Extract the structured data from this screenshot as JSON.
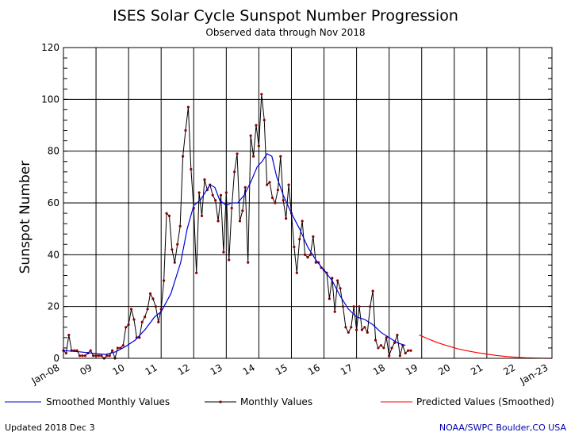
{
  "chart_data": {
    "type": "line",
    "title": "ISES Solar Cycle Sunspot Number Progression",
    "subtitle": "Observed data through Nov 2018",
    "ylabel": "Sunspot Number",
    "xlabel": "",
    "ylim": [
      0,
      120
    ],
    "yticks": [
      0,
      20,
      40,
      60,
      80,
      100,
      120
    ],
    "xlim": [
      2008.0,
      2023.0
    ],
    "xticks": [
      {
        "value": 2008,
        "label": "Jan-08"
      },
      {
        "value": 2009,
        "label": "09"
      },
      {
        "value": 2010,
        "label": "10"
      },
      {
        "value": 2011,
        "label": "11"
      },
      {
        "value": 2012,
        "label": "12"
      },
      {
        "value": 2013,
        "label": "13"
      },
      {
        "value": 2014,
        "label": "14"
      },
      {
        "value": 2015,
        "label": "15"
      },
      {
        "value": 2016,
        "label": "16"
      },
      {
        "value": 2017,
        "label": "17"
      },
      {
        "value": 2018,
        "label": "18"
      },
      {
        "value": 2019,
        "label": "19"
      },
      {
        "value": 2020,
        "label": "20"
      },
      {
        "value": 2021,
        "label": "21"
      },
      {
        "value": 2022,
        "label": "22"
      },
      {
        "value": 2023,
        "label": "Jan-23"
      }
    ],
    "grid": true,
    "legend_position": "bottom",
    "colors": {
      "smoothed": "#0000dd",
      "monthly": "#000000",
      "monthly_marker": "#8b0000",
      "predicted": "#ff0000"
    },
    "series": [
      {
        "name": "Monthly Values",
        "x_start": 2008.0,
        "x_step_months": 1,
        "values": [
          3,
          2,
          9,
          3,
          3,
          3,
          1,
          1,
          1,
          2,
          3,
          1,
          1,
          1,
          1,
          0,
          1,
          1,
          3,
          0,
          4,
          4,
          5,
          12,
          13,
          19,
          15,
          8,
          8,
          14,
          16,
          19,
          25,
          23,
          20,
          14,
          19,
          30,
          56,
          55,
          42,
          37,
          44,
          51,
          78,
          88,
          97,
          73,
          58,
          33,
          64,
          55,
          69,
          65,
          67,
          63,
          61,
          53,
          63,
          41,
          64,
          38,
          58,
          72,
          79,
          53,
          57,
          66,
          37,
          86,
          78,
          90,
          82,
          102,
          92,
          67,
          68,
          62,
          60,
          65,
          78,
          61,
          54,
          67,
          56,
          43,
          33,
          46,
          53,
          40,
          39,
          40,
          47,
          37,
          37,
          35,
          34,
          33,
          23,
          31,
          18,
          30,
          27,
          20,
          12,
          10,
          12,
          20,
          11,
          20,
          11,
          12,
          10,
          20,
          26,
          7,
          4,
          5,
          4,
          8,
          1,
          4,
          6,
          9,
          1,
          5,
          2,
          3,
          3
        ]
      },
      {
        "name": "Smoothed Monthly Values",
        "points": [
          [
            2008.0,
            3
          ],
          [
            2008.5,
            2.5
          ],
          [
            2009.0,
            1.8
          ],
          [
            2009.3,
            1.5
          ],
          [
            2009.6,
            2.5
          ],
          [
            2009.9,
            4.5
          ],
          [
            2010.2,
            7
          ],
          [
            2010.5,
            11
          ],
          [
            2010.8,
            16
          ],
          [
            2011.0,
            18
          ],
          [
            2011.3,
            25
          ],
          [
            2011.6,
            37
          ],
          [
            2011.8,
            50
          ],
          [
            2012.0,
            59
          ],
          [
            2012.2,
            61
          ],
          [
            2012.35,
            64
          ],
          [
            2012.5,
            67
          ],
          [
            2012.65,
            66
          ],
          [
            2012.8,
            61
          ],
          [
            2013.0,
            59
          ],
          [
            2013.15,
            60
          ],
          [
            2013.35,
            60
          ],
          [
            2013.55,
            63
          ],
          [
            2013.75,
            68
          ],
          [
            2013.95,
            74
          ],
          [
            2014.1,
            76
          ],
          [
            2014.25,
            79
          ],
          [
            2014.4,
            78
          ],
          [
            2014.55,
            70
          ],
          [
            2014.75,
            63
          ],
          [
            2015.0,
            56
          ],
          [
            2015.25,
            50
          ],
          [
            2015.5,
            43
          ],
          [
            2015.75,
            38
          ],
          [
            2016.0,
            34
          ],
          [
            2016.25,
            30
          ],
          [
            2016.5,
            24
          ],
          [
            2016.75,
            19
          ],
          [
            2017.0,
            16
          ],
          [
            2017.25,
            15
          ],
          [
            2017.5,
            13
          ],
          [
            2017.75,
            10
          ],
          [
            2018.0,
            8
          ],
          [
            2018.25,
            6
          ],
          [
            2018.5,
            5
          ]
        ]
      },
      {
        "name": "Predicted Values (Smoothed)",
        "points": [
          [
            2018.92,
            9
          ],
          [
            2019.2,
            7.5
          ],
          [
            2019.5,
            6
          ],
          [
            2019.8,
            4.8
          ],
          [
            2020.1,
            3.7
          ],
          [
            2020.4,
            2.9
          ],
          [
            2020.7,
            2.2
          ],
          [
            2021.0,
            1.6
          ],
          [
            2021.3,
            1.1
          ],
          [
            2021.6,
            0.7
          ],
          [
            2021.9,
            0.4
          ],
          [
            2022.2,
            0.2
          ],
          [
            2022.5,
            0.1
          ],
          [
            2022.8,
            0
          ],
          [
            2023.0,
            0
          ]
        ]
      }
    ]
  },
  "legend": {
    "smoothed_label": "Smoothed Monthly Values",
    "monthly_label": "Monthly Values",
    "predicted_label": "Predicted Values (Smoothed)"
  },
  "footer": {
    "updated": "Updated 2018 Dec  3",
    "credit": "NOAA/SWPC Boulder,CO USA",
    "credit_color": "#0000aa"
  }
}
